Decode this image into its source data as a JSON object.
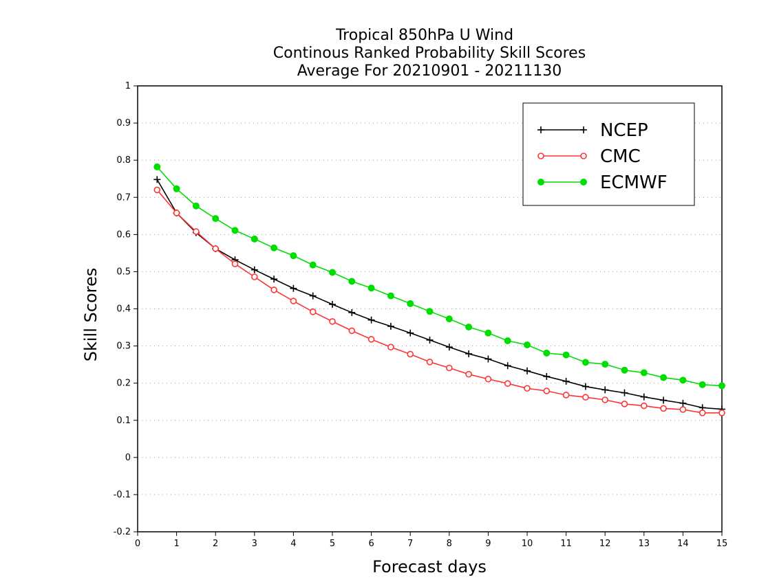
{
  "chart_data": {
    "type": "line",
    "title_lines": [
      "Tropical 850hPa U Wind",
      "Continous Ranked Probability Skill Scores",
      "Average For 20210901 - 20211130"
    ],
    "xlabel": "Forecast days",
    "ylabel": "Skill Scores",
    "xlim": [
      0,
      15
    ],
    "ylim": [
      -0.2,
      1
    ],
    "xticks": [
      0,
      1,
      2,
      3,
      4,
      5,
      6,
      7,
      8,
      9,
      10,
      11,
      12,
      13,
      14,
      15
    ],
    "xtick_labels": [
      "0",
      "1",
      "2",
      "3",
      "4",
      "5",
      "6",
      "7",
      "8",
      "9",
      "10",
      "11",
      "12",
      "13",
      "14",
      "15"
    ],
    "yticks": [
      -0.2,
      -0.1,
      0,
      0.1,
      0.2,
      0.3,
      0.4,
      0.5,
      0.6,
      0.7,
      0.8,
      0.9,
      1
    ],
    "ytick_labels": [
      "-0.2",
      "-0.1",
      "0",
      "0.1",
      "0.2",
      "0.3",
      "0.4",
      "0.5",
      "0.6",
      "0.7",
      "0.8",
      "0.9",
      "1"
    ],
    "grid": "horizontal-dotted",
    "legend_position": "top-right",
    "x": [
      0.5,
      1,
      1.5,
      2,
      2.5,
      3,
      3.5,
      4,
      4.5,
      5,
      5.5,
      6,
      6.5,
      7,
      7.5,
      8,
      8.5,
      9,
      9.5,
      10,
      10.5,
      11,
      11.5,
      12,
      12.5,
      13,
      13.5,
      14,
      14.5,
      15
    ],
    "series": [
      {
        "name": "NCEP",
        "color": "#000000",
        "marker": "plus",
        "values": [
          0.748,
          0.658,
          0.605,
          0.562,
          0.532,
          0.505,
          0.48,
          0.455,
          0.435,
          0.412,
          0.39,
          0.37,
          0.353,
          0.335,
          0.316,
          0.297,
          0.279,
          0.265,
          0.247,
          0.233,
          0.218,
          0.205,
          0.191,
          0.182,
          0.174,
          0.163,
          0.154,
          0.146,
          0.134,
          0.13
        ]
      },
      {
        "name": "CMC",
        "color": "#ff3333",
        "marker": "open-circle",
        "values": [
          0.72,
          0.658,
          0.608,
          0.562,
          0.521,
          0.486,
          0.451,
          0.421,
          0.392,
          0.366,
          0.341,
          0.318,
          0.297,
          0.278,
          0.257,
          0.241,
          0.224,
          0.211,
          0.199,
          0.186,
          0.179,
          0.168,
          0.162,
          0.155,
          0.144,
          0.139,
          0.132,
          0.129,
          0.12,
          0.12
        ]
      },
      {
        "name": "ECMWF",
        "color": "#00dd00",
        "marker": "filled-circle",
        "values": [
          0.782,
          0.723,
          0.677,
          0.643,
          0.611,
          0.588,
          0.564,
          0.543,
          0.518,
          0.498,
          0.474,
          0.456,
          0.435,
          0.414,
          0.393,
          0.373,
          0.351,
          0.335,
          0.314,
          0.303,
          0.281,
          0.276,
          0.256,
          0.251,
          0.235,
          0.228,
          0.215,
          0.208,
          0.196,
          0.193
        ]
      }
    ]
  }
}
